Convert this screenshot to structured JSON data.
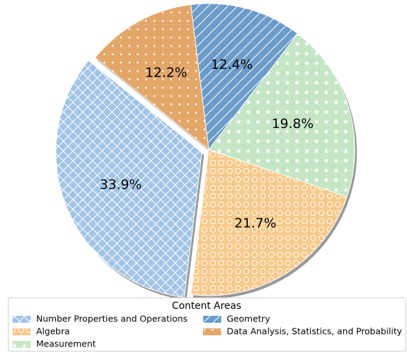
{
  "chart_data": {
    "type": "pie",
    "legend_title": "Content Areas",
    "legend_position": "bottom",
    "categories": [
      "Number Properties and Operations",
      "Algebra",
      "Measurement",
      "Geometry",
      "Data Analysis, Statistics, and Probability"
    ],
    "values": [
      33.9,
      21.7,
      19.8,
      12.4,
      12.2
    ],
    "value_labels": [
      "33.9%",
      "21.7%",
      "19.8%",
      "12.4%",
      "12.2%"
    ],
    "colors": [
      "#a1c4e6",
      "#f7c98a",
      "#c5e6c5",
      "#6b9bc9",
      "#e4a76a"
    ],
    "hatches": [
      "x",
      "o",
      "*",
      "/",
      "."
    ],
    "explode": [
      0.05,
      0,
      0,
      0,
      0
    ],
    "shadow": true
  }
}
